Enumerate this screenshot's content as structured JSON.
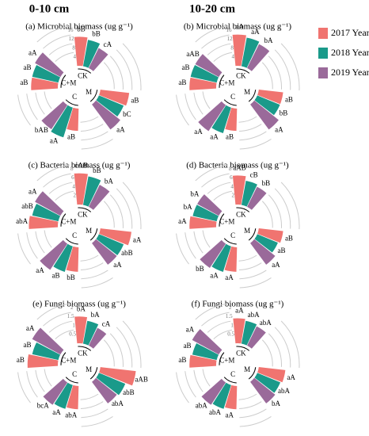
{
  "columns": [
    "0-10 cm",
    "10-20 cm"
  ],
  "legend": {
    "names": [
      "2017 Year",
      "2018 Year",
      "2019 Year"
    ],
    "colors": [
      "#f07470",
      "#1a9a8a",
      "#9a6a9a"
    ]
  },
  "chart_data": [
    {
      "type": "radialbar",
      "title": "(a) Microbial biomass (ug g⁻¹)",
      "categories": [
        "CK",
        "M",
        "C",
        "C+M"
      ],
      "ylim": [
        0,
        16
      ],
      "yticks": [
        4,
        8,
        12,
        16
      ],
      "series": [
        {
          "values": [
            13,
            13,
            10,
            12
          ],
          "letters": [
            "bB",
            "aB",
            "aB",
            "aB"
          ]
        },
        {
          "values": [
            12,
            12,
            14,
            12
          ],
          "letters": [
            "bB",
            "bC",
            "aA",
            "aB"
          ]
        },
        {
          "values": [
            10,
            14,
            13,
            13
          ],
          "letters": [
            "cA",
            "aA",
            "bAB",
            "aA"
          ]
        }
      ]
    },
    {
      "type": "radialbar",
      "title": "(b) Microbial biomass (ug g⁻¹)",
      "categories": [
        "CK",
        "M",
        "C",
        "C+M"
      ],
      "ylim": [
        0,
        16
      ],
      "yticks": [
        4,
        8,
        12,
        16
      ],
      "series": [
        {
          "values": [
            14,
            11,
            10,
            12
          ],
          "letters": [
            "aA",
            "aB",
            "aB",
            "aB"
          ]
        },
        {
          "values": [
            13,
            11,
            12,
            12
          ],
          "letters": [
            "aA",
            "bB",
            "aA",
            "aB"
          ]
        },
        {
          "values": [
            12,
            14,
            14,
            12
          ],
          "letters": [
            "bA",
            "aA",
            "aA",
            "aAB"
          ]
        }
      ]
    },
    {
      "type": "radialbar",
      "title": "(c) Bacteria biomass (ug g⁻¹)",
      "categories": [
        "CK",
        "M",
        "C",
        "C+M"
      ],
      "ylim": [
        0,
        8
      ],
      "yticks": [
        2,
        4,
        6,
        8
      ],
      "series": [
        {
          "values": [
            7,
            7,
            5.5,
            6.5
          ],
          "letters": [
            "cAB",
            "aA",
            "bB",
            "abA"
          ]
        },
        {
          "values": [
            6.5,
            6,
            6,
            6
          ],
          "letters": [
            "bB",
            "abB",
            "aB",
            "abB"
          ]
        },
        {
          "values": [
            5.5,
            6,
            7,
            6.5
          ],
          "letters": [
            "bA",
            "aA",
            "aA",
            "aA"
          ]
        }
      ]
    },
    {
      "type": "radialbar",
      "title": "(d) Bacteria biomass (ug g⁻¹)",
      "categories": [
        "CK",
        "M",
        "C",
        "C+M"
      ],
      "ylim": [
        0,
        8
      ],
      "yticks": [
        2,
        4,
        6,
        8
      ],
      "series": [
        {
          "values": [
            6.5,
            5.5,
            5.5,
            6
          ],
          "letters": [
            "aAB",
            "aB",
            "aA",
            "aA"
          ]
        },
        {
          "values": [
            5.5,
            5,
            6,
            5.5
          ],
          "letters": [
            "cB",
            "aB",
            "aA",
            "bA"
          ]
        },
        {
          "values": [
            5,
            6,
            6.5,
            5.5
          ],
          "letters": [
            "bB",
            "aA",
            "bB",
            "bA"
          ]
        }
      ]
    },
    {
      "type": "radialbar",
      "title": "(e) Fungi biomass (ug g⁻¹)",
      "categories": [
        "CK",
        "M",
        "C",
        "C+M"
      ],
      "ylim": [
        0,
        2
      ],
      "yticks": [
        0.5,
        1,
        1.5,
        2
      ],
      "series": [
        {
          "values": [
            1.5,
            2,
            1.3,
            1.7
          ],
          "letters": [
            "bA",
            "aAB",
            "abA",
            "aB"
          ]
        },
        {
          "values": [
            1.3,
            1.6,
            1.4,
            1.5
          ],
          "letters": [
            "bA",
            "abB",
            "aA",
            "aB"
          ]
        },
        {
          "values": [
            1.1,
            1.5,
            1.5,
            1.8
          ],
          "letters": [
            "cA",
            "abA",
            "bcA",
            "aA"
          ]
        }
      ]
    },
    {
      "type": "radialbar",
      "title": "(f) Fungi biomass (ug g⁻¹)",
      "categories": [
        "CK",
        "M",
        "C",
        "C+M"
      ],
      "ylim": [
        0,
        2
      ],
      "yticks": [
        0.5,
        1,
        1.5,
        2
      ],
      "series": [
        {
          "values": [
            1.4,
            1.5,
            1.3,
            1.5
          ],
          "letters": [
            "aA",
            "aA",
            "aA",
            "aB"
          ]
        },
        {
          "values": [
            1.3,
            1.4,
            1.4,
            1.4
          ],
          "letters": [
            "abA",
            "abA",
            "abA",
            "aB"
          ]
        },
        {
          "values": [
            1.2,
            1.5,
            1.5,
            1.7
          ],
          "letters": [
            "abA",
            "bA",
            "abA",
            "aA"
          ]
        }
      ]
    }
  ]
}
